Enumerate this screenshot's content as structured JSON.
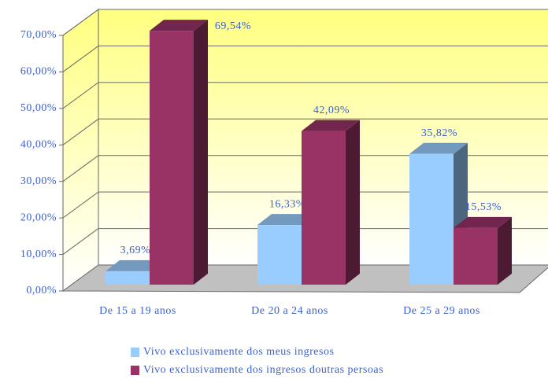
{
  "chart_data": {
    "type": "bar3d",
    "categories": [
      "De 15 a 19 anos",
      "De 20 a 24 anos",
      "De 25 a 29 anos"
    ],
    "series": [
      {
        "name": "Vivo exclusivamente dos meus ingresos",
        "color": "#99ccff",
        "values": [
          3.69,
          16.33,
          35.82
        ],
        "value_labels": [
          "3,69%",
          "16,33%",
          "35,82%"
        ]
      },
      {
        "name": "Vivo exclusivamente dos ingresos doutras persoas",
        "color": "#993366",
        "values": [
          69.54,
          42.09,
          15.53
        ],
        "value_labels": [
          "69,54%",
          "42,09%",
          "15,53%"
        ]
      }
    ],
    "ylim": [
      0,
      70
    ],
    "yticks": [
      {
        "value": 0,
        "label": "0,00%"
      },
      {
        "value": 10,
        "label": "10,00%"
      },
      {
        "value": 20,
        "label": "20,00%"
      },
      {
        "value": 30,
        "label": "30,00%"
      },
      {
        "value": 40,
        "label": "40,00%"
      },
      {
        "value": 50,
        "label": "50,00%"
      },
      {
        "value": 60,
        "label": "60,00%"
      },
      {
        "value": 70,
        "label": "70,00%"
      }
    ],
    "grid": true
  }
}
